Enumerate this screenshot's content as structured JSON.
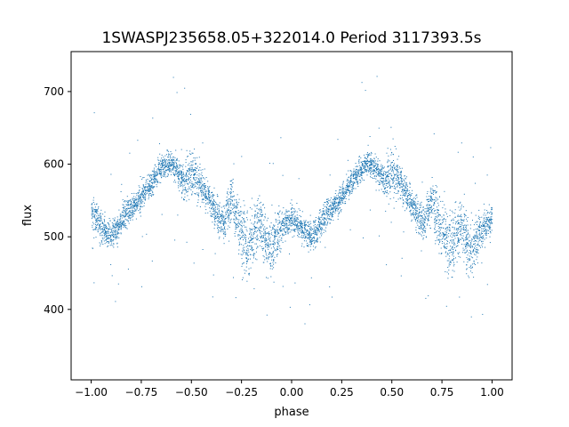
{
  "chart_data": {
    "type": "scatter",
    "title": "1SWASPJ235658.05+322014.0 Period 3117393.5s",
    "xlabel": "phase",
    "ylabel": "flux",
    "xlim": [
      -1.1,
      1.1
    ],
    "ylim": [
      303,
      755
    ],
    "xticks": [
      -1.0,
      -0.75,
      -0.5,
      -0.25,
      0.0,
      0.25,
      0.5,
      0.75,
      1.0
    ],
    "xtick_labels": [
      "−1.00",
      "−0.75",
      "−0.50",
      "−0.25",
      "0.00",
      "0.25",
      "0.50",
      "0.75",
      "1.00"
    ],
    "yticks": [
      400,
      500,
      600,
      700
    ],
    "ytick_labels": [
      "400",
      "500",
      "600",
      "700"
    ],
    "grid": false,
    "marker_color": "#1f77b4",
    "series": [
      {
        "x": [
          -1.0,
          -0.98,
          -0.96,
          -0.94,
          -0.92,
          -0.9,
          -0.88,
          -0.86,
          -0.84,
          -0.82,
          -0.8,
          -0.78,
          -0.76,
          -0.74,
          -0.72,
          -0.7,
          -0.68,
          -0.66,
          -0.64,
          -0.62,
          -0.6,
          -0.58,
          -0.56,
          -0.54,
          -0.52,
          -0.5,
          -0.48,
          -0.46,
          -0.44,
          -0.42,
          -0.4,
          -0.38,
          -0.36,
          -0.34,
          -0.32,
          -0.3,
          -0.28,
          -0.26,
          -0.24,
          -0.22,
          -0.2,
          -0.18,
          -0.16,
          -0.14,
          -0.12,
          -0.1,
          -0.08,
          -0.06,
          -0.04,
          -0.02,
          0.0,
          0.02,
          0.04,
          0.06,
          0.08,
          0.1,
          0.12,
          0.14,
          0.16,
          0.18,
          0.2,
          0.22,
          0.24,
          0.26,
          0.28,
          0.3,
          0.32,
          0.34,
          0.36,
          0.38,
          0.4,
          0.42,
          0.44,
          0.46,
          0.48,
          0.5,
          0.52,
          0.54,
          0.56,
          0.58,
          0.6,
          0.62,
          0.64,
          0.66,
          0.68,
          0.7,
          0.72,
          0.74,
          0.76,
          0.78,
          0.8,
          0.82,
          0.84,
          0.86,
          0.88,
          0.9,
          0.92,
          0.94,
          0.96,
          0.98,
          1.0
        ],
        "y": [
          530,
          528,
          520,
          512,
          505,
          502,
          508,
          518,
          528,
          535,
          540,
          545,
          552,
          560,
          568,
          576,
          584,
          592,
          598,
          602,
          600,
          595,
          585,
          578,
          582,
          590,
          585,
          575,
          565,
          555,
          545,
          535,
          525,
          520,
          540,
          550,
          535,
          515,
          500,
          490,
          495,
          510,
          520,
          505,
          490,
          485,
          500,
          510,
          518,
          522,
          525,
          522,
          515,
          508,
          504,
          502,
          508,
          518,
          528,
          535,
          540,
          546,
          553,
          561,
          569,
          577,
          585,
          593,
          598,
          602,
          600,
          594,
          586,
          580,
          583,
          590,
          585,
          575,
          565,
          555,
          545,
          535,
          525,
          520,
          540,
          550,
          535,
          515,
          500,
          490,
          492,
          505,
          515,
          505,
          490,
          484,
          498,
          508,
          515,
          520,
          525
        ],
        "spread": [
          30,
          35,
          35,
          30,
          30,
          30,
          30,
          30,
          30,
          28,
          28,
          25,
          25,
          25,
          25,
          25,
          25,
          25,
          25,
          25,
          25,
          25,
          30,
          35,
          45,
          55,
          50,
          40,
          35,
          30,
          30,
          35,
          35,
          35,
          40,
          45,
          55,
          65,
          70,
          70,
          65,
          60,
          55,
          55,
          60,
          60,
          50,
          40,
          35,
          30,
          30,
          30,
          30,
          30,
          30,
          30,
          30,
          30,
          30,
          28,
          28,
          25,
          25,
          25,
          25,
          25,
          25,
          25,
          25,
          25,
          25,
          25,
          30,
          35,
          45,
          55,
          50,
          40,
          35,
          30,
          30,
          35,
          35,
          35,
          40,
          45,
          55,
          65,
          70,
          70,
          65,
          60,
          55,
          55,
          60,
          60,
          50,
          40,
          35,
          30,
          30
        ]
      }
    ]
  }
}
